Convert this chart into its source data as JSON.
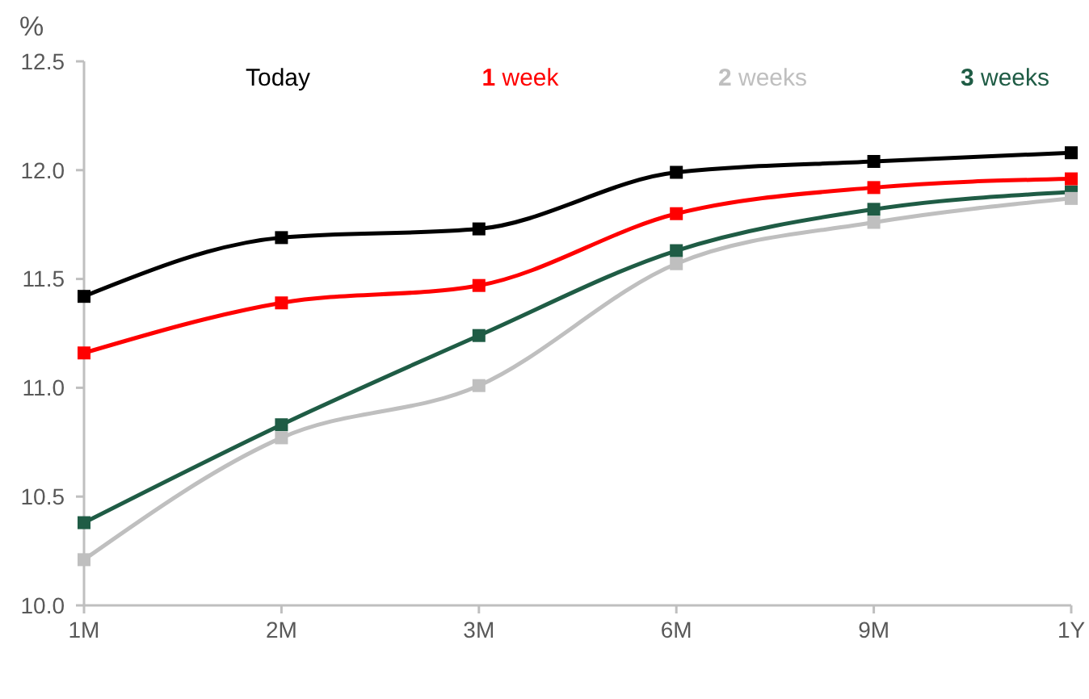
{
  "chart_data": {
    "type": "line",
    "ylabel": "%",
    "categories": [
      "1M",
      "2M",
      "3M",
      "6M",
      "9M",
      "1Y"
    ],
    "series": [
      {
        "name": "Today",
        "color": "#000000",
        "values": [
          11.42,
          11.69,
          11.73,
          11.99,
          12.04,
          12.08
        ]
      },
      {
        "name": "1 week",
        "color": "#ff0000",
        "values": [
          11.16,
          11.39,
          11.47,
          11.8,
          11.92,
          11.96
        ]
      },
      {
        "name": "2 weeks",
        "color": "#bfbfbf",
        "values": [
          10.21,
          10.77,
          11.01,
          11.57,
          11.76,
          11.87
        ]
      },
      {
        "name": "3 weeks",
        "color": "#1f5c45",
        "values": [
          10.38,
          10.83,
          11.24,
          11.63,
          11.82,
          11.9
        ]
      }
    ],
    "ylim": [
      10.0,
      12.5
    ],
    "yticks": [
      {
        "value": 10,
        "label": "10.0"
      },
      {
        "value": 10.5,
        "label": "10.5"
      },
      {
        "value": 11,
        "label": "11.0"
      },
      {
        "value": 11.5,
        "label": "11.5"
      },
      {
        "value": 12,
        "label": "12.0"
      },
      {
        "value": 12.5,
        "label": "12.5"
      }
    ],
    "grid": false,
    "legend": "top",
    "marker": "square",
    "line_style": "solid"
  }
}
